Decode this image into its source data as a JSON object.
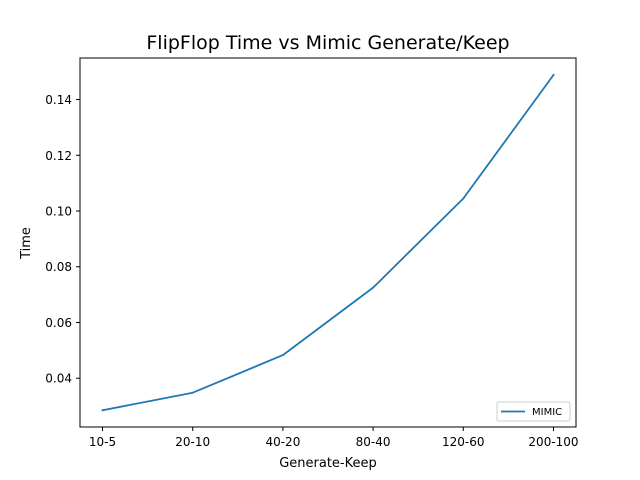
{
  "chart_data": {
    "type": "line",
    "title": "FlipFlop Time vs Mimic Generate/Keep",
    "xlabel": "Generate-Keep",
    "ylabel": "Time",
    "categories": [
      "10-5",
      "20-10",
      "40-20",
      "80-40",
      "120-60",
      "200-100"
    ],
    "series": [
      {
        "name": "MIMIC",
        "color": "#1f77b4",
        "values": [
          0.0285,
          0.0348,
          0.0483,
          0.0725,
          0.1045,
          0.1488
        ]
      }
    ],
    "yticks": [
      0.04,
      0.06,
      0.08,
      0.1,
      0.12,
      0.14
    ],
    "ytick_labels": [
      "0.04",
      "0.06",
      "0.08",
      "0.10",
      "0.12",
      "0.14"
    ],
    "ylim": [
      0.0225,
      0.1549
    ],
    "grid": false,
    "legend_position": "lower-right"
  }
}
